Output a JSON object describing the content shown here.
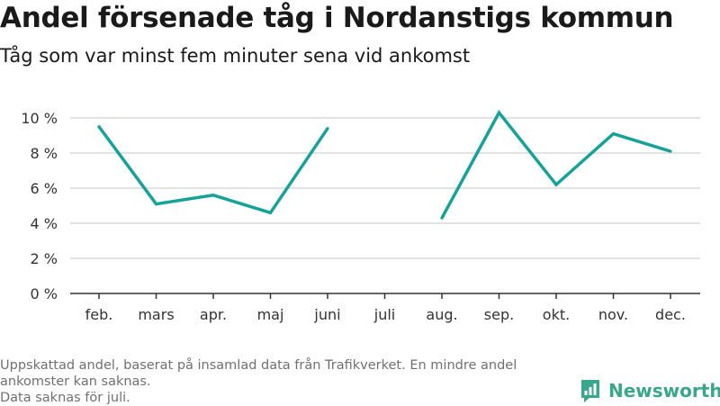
{
  "header": {
    "title": "Andel försenade tåg i Nordanstigs kommun",
    "subtitle": "Tåg som var minst fem minuter sena vid ankomst"
  },
  "footer": {
    "note_line1": "Uppskattad andel, baserat på insamlad data från Trafikverket. En mindre andel ankomster kan saknas.",
    "note_line2": "Data saknas för juli."
  },
  "brand": {
    "name": "Newsworthy",
    "color": "#3aa68c"
  },
  "chart_data": {
    "type": "line",
    "title": "Andel försenade tåg i Nordanstigs kommun",
    "subtitle": "Tåg som var minst fem minuter sena vid ankomst",
    "categories": [
      "feb.",
      "mars",
      "apr.",
      "maj",
      "juni",
      "juli",
      "aug.",
      "sep.",
      "okt.",
      "nov.",
      "dec."
    ],
    "series": [
      {
        "values": [
          9.5,
          5.1,
          5.6,
          4.6,
          9.4,
          null,
          4.3,
          10.3,
          6.2,
          9.1,
          8.1
        ]
      }
    ],
    "ylim": [
      0,
      10
    ],
    "yticks": [
      0,
      2,
      4,
      6,
      8,
      10
    ],
    "ytick_labels": [
      "0 %",
      "2 %",
      "4 %",
      "6 %",
      "8 %",
      "10 %"
    ],
    "xlabel": "",
    "ylabel": "",
    "grid": true,
    "line_color": "#16a298",
    "grid_color": "#d9d9d9",
    "axis_color": "#333333"
  }
}
